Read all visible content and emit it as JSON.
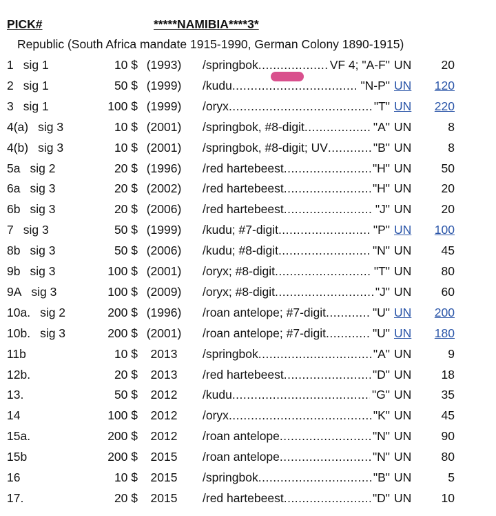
{
  "header": {
    "pick_label": "PICK#",
    "title": "*****NAMIBIA****3*",
    "subtitle": "Republic (South Africa mandate 1915-1990, German Colony 1890-1915)"
  },
  "rows": [
    {
      "pick": "1",
      "sig": "sig 1",
      "value": "10 $",
      "year": "(1993)",
      "desc": "/springbok",
      "prefix": "VF 4;  \"A-F\"",
      "grade": "UN",
      "price": "20"
    },
    {
      "pick": "2",
      "sig": "sig 1",
      "value": "50 $",
      "year": "(1999)",
      "desc": "/kudu",
      "prefix": "\"N-P\"",
      "grade": "UN",
      "price": "120",
      "link": true
    },
    {
      "pick": "3",
      "sig": "sig 1",
      "value": "100 $",
      "year": "(1999)",
      "desc": "/oryx",
      "prefix": "\"T\"",
      "grade": "UN",
      "price": "220",
      "link": true
    },
    {
      "pick": "4(a)",
      "sig": "sig 3",
      "value": "10 $",
      "year": "(2001)",
      "desc": "/springbok, #8-digit",
      "prefix": "\"A\"",
      "grade": "UN",
      "price": "8"
    },
    {
      "pick": "4(b)",
      "sig": "sig 3",
      "value": "10 $",
      "year": "(2001)",
      "desc": "/springbok, #8-digit; UV",
      "prefix": "\"B\"",
      "grade": "UN",
      "price": "8"
    },
    {
      "pick": "5a",
      "sig": "sig 2",
      "value": "20 $",
      "year": "(1996)",
      "desc": "/red hartebeest",
      "prefix": "\"H\"",
      "grade": "UN",
      "price": "50"
    },
    {
      "pick": "6a",
      "sig": "sig 3",
      "value": "20 $",
      "year": "(2002)",
      "desc": "/red hartebeest",
      "prefix": "\"H\"",
      "grade": "UN",
      "price": "20"
    },
    {
      "pick": "6b",
      "sig": "sig 3",
      "value": "20 $",
      "year": "(2006)",
      "desc": "/red hartebeest",
      "prefix": "\"J\"",
      "grade": "UN",
      "price": "20"
    },
    {
      "pick": "7",
      "sig": "sig 3",
      "value": "50 $",
      "year": "(1999)",
      "desc": "/kudu; #7-digit",
      "prefix": "\"P\"",
      "grade": "UN",
      "price": "100",
      "link": true
    },
    {
      "pick": "8b",
      "sig": "sig 3",
      "value": "50 $",
      "year": "(2006)",
      "desc": "/kudu; #8-digit",
      "prefix": "\"N\"",
      "grade": "UN",
      "price": "45"
    },
    {
      "pick": "9b",
      "sig": "sig 3",
      "value": "100 $",
      "year": "(2001)",
      "desc": "/oryx; #8-digit",
      "prefix": "\"T\"",
      "grade": "UN",
      "price": "80"
    },
    {
      "pick": "9A",
      "sig": "sig 3",
      "value": "100 $",
      "year": "(2009)",
      "desc": "/oryx; #8-digit",
      "prefix": "\"J\"",
      "grade": "UN",
      "price": "60"
    },
    {
      "pick": "10a.",
      "sig": "sig 2",
      "value": "200 $",
      "year": "(1996)",
      "desc": "/roan antelope; #7-digit",
      "prefix": "\"U\"",
      "grade": "UN",
      "price": "200",
      "link": true
    },
    {
      "pick": "10b.",
      "sig": "sig 3",
      "value": "200 $",
      "year": "(2001)",
      "desc": "/roan antelope; #7-digit",
      "prefix": "\"U\"",
      "grade": "UN",
      "price": "180",
      "link": true
    },
    {
      "pick": "11b",
      "value": "10 $",
      "year": "2013",
      "desc": "/springbok",
      "prefix": "\"A\"",
      "grade": "UN",
      "price": "9"
    },
    {
      "pick": "12b.",
      "value": "20 $",
      "year": "2013",
      "desc": "/red hartebeest",
      "prefix": "\"D\"",
      "grade": "UN",
      "price": "18"
    },
    {
      "pick": "13.",
      "value": "50 $",
      "year": "2012",
      "desc": "/kudu",
      "prefix": "\"G\"",
      "grade": "UN",
      "price": "35"
    },
    {
      "pick": "14",
      "value": "100 $",
      "year": "2012",
      "desc": "/oryx",
      "prefix": "\"K\"",
      "grade": "UN",
      "price": "45"
    },
    {
      "pick": "15a.",
      "value": "200 $",
      "year": "2012",
      "desc": "/roan antelope",
      "prefix": "\"N\"",
      "grade": "UN",
      "price": "90"
    },
    {
      "pick": "15b",
      "value": "200 $",
      "year": "2015",
      "desc": "/roan antelope",
      "prefix": "\"N\"",
      "grade": "UN",
      "price": "80"
    },
    {
      "pick": "16",
      "value": "10 $",
      "year": "2015",
      "desc": "/springbok",
      "prefix": "\"B\"",
      "grade": "UN",
      "price": "5"
    },
    {
      "pick": "17.",
      "value": "20 $",
      "year": "2015",
      "desc": "/red hartebeest",
      "prefix": "\"D\"",
      "grade": "UN",
      "price": "10"
    }
  ]
}
